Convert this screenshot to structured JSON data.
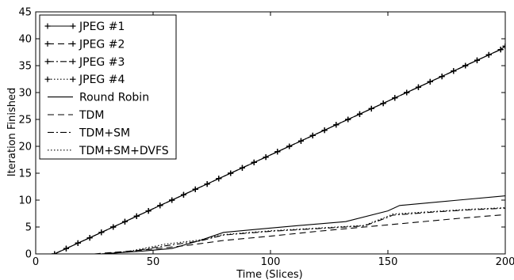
{
  "chart_data": {
    "type": "line",
    "title": "",
    "xlabel": "Time (Slices)",
    "ylabel": "Iteration Finished",
    "xlim": [
      0,
      200
    ],
    "ylim": [
      0,
      45
    ],
    "xticks": [
      0,
      50,
      100,
      150,
      200
    ],
    "yticks": [
      0,
      5,
      10,
      15,
      20,
      25,
      30,
      35,
      40,
      45
    ],
    "grid": false,
    "legend_position": "top-left",
    "series": [
      {
        "name": "JPEG #1",
        "style": "solid-plus",
        "x": [
          8,
          13,
          18,
          23,
          28,
          33,
          38,
          43,
          48,
          53,
          58,
          63,
          68,
          73,
          78,
          83,
          88,
          93,
          98,
          103,
          108,
          113,
          118,
          123,
          128,
          133,
          138,
          143,
          148,
          153,
          158,
          163,
          168,
          173,
          178,
          183,
          188,
          193,
          198,
          200
        ],
        "y": [
          0,
          1,
          2,
          3,
          4,
          5,
          6,
          7,
          8,
          9,
          10,
          11,
          12,
          13,
          14,
          15,
          16,
          17,
          18,
          19,
          20,
          21,
          22,
          23,
          24,
          25,
          26,
          27,
          28,
          29,
          30,
          31,
          32,
          33,
          34,
          35,
          36,
          37,
          38,
          38.6
        ]
      },
      {
        "name": "JPEG #2",
        "style": "dashed-plus",
        "x": [
          8,
          13,
          18,
          23,
          28,
          33,
          38,
          43,
          48,
          53,
          58,
          63,
          68,
          73,
          78,
          83,
          88,
          93,
          98,
          103,
          108,
          113,
          118,
          123,
          128,
          133,
          138,
          143,
          148,
          153,
          158,
          163,
          168,
          173,
          178,
          183,
          188,
          193,
          198,
          200
        ],
        "y": [
          0,
          1,
          2,
          3,
          4,
          5,
          6,
          7,
          8,
          9,
          10,
          11,
          12,
          13,
          14,
          15,
          16,
          17,
          18,
          19,
          20,
          21,
          22,
          23,
          24,
          25,
          26,
          27,
          28,
          29,
          30,
          31,
          32,
          33,
          34,
          35,
          36,
          37,
          38,
          38.6
        ]
      },
      {
        "name": "JPEG #3",
        "style": "dashdot-plus",
        "x": [
          8,
          13,
          18,
          23,
          28,
          33,
          38,
          43,
          48,
          53,
          58,
          63,
          68,
          73,
          78,
          83,
          88,
          93,
          98,
          103,
          108,
          113,
          118,
          123,
          128,
          133,
          138,
          143,
          148,
          153,
          158,
          163,
          168,
          173,
          178,
          183,
          188,
          193,
          198,
          200
        ],
        "y": [
          0,
          1,
          2,
          3,
          4,
          5,
          6,
          7,
          8,
          9,
          10,
          11,
          12,
          13,
          14,
          15,
          16,
          17,
          18,
          19,
          20,
          21,
          22,
          23,
          24,
          25,
          26,
          27,
          28,
          29,
          30,
          31,
          32,
          33,
          34,
          35,
          36,
          37,
          38,
          38.6
        ]
      },
      {
        "name": "JPEG #4",
        "style": "dotted-plus",
        "x": [
          8,
          13,
          18,
          23,
          28,
          33,
          38,
          43,
          48,
          53,
          58,
          63,
          68,
          73,
          78,
          83,
          88,
          93,
          98,
          103,
          108,
          113,
          118,
          123,
          128,
          133,
          138,
          143,
          148,
          153,
          158,
          163,
          168,
          173,
          178,
          183,
          188,
          193,
          198,
          200
        ],
        "y": [
          0,
          1,
          2,
          3,
          4,
          5,
          6,
          7,
          8,
          9,
          10,
          11,
          12,
          13,
          14,
          15,
          16,
          17,
          18,
          19,
          20,
          21,
          22,
          23,
          24,
          25,
          26,
          27,
          28,
          29,
          30,
          31,
          32,
          33,
          34,
          35,
          36,
          37,
          38,
          38.6
        ]
      },
      {
        "name": "Round Robin",
        "style": "solid",
        "x": [
          28,
          45,
          58,
          70,
          80,
          95,
          110,
          132,
          150,
          155,
          180,
          200
        ],
        "y": [
          0,
          0.5,
          1.0,
          2.5,
          4.0,
          4.6,
          5.2,
          6.0,
          8.0,
          9.0,
          10.0,
          10.8
        ]
      },
      {
        "name": "TDM",
        "style": "dashed",
        "x": [
          25,
          45,
          65,
          80,
          100,
          120,
          140,
          160,
          180,
          200
        ],
        "y": [
          0,
          0.7,
          1.6,
          2.5,
          3.3,
          4.2,
          5.0,
          5.8,
          6.6,
          7.3
        ]
      },
      {
        "name": "TDM+SM",
        "style": "dashdot",
        "x": [
          28,
          40,
          55,
          70,
          80,
          100,
          120,
          140,
          150,
          152,
          170,
          185,
          200
        ],
        "y": [
          0,
          0.4,
          1.5,
          2.4,
          3.5,
          4.2,
          4.7,
          5.2,
          6.8,
          7.2,
          7.8,
          8.2,
          8.5
        ]
      },
      {
        "name": "TDM+SM+DVFS",
        "style": "dotted",
        "x": [
          28,
          40,
          55,
          70,
          80,
          100,
          120,
          140,
          150,
          152,
          170,
          185,
          200
        ],
        "y": [
          0,
          0.5,
          1.8,
          2.6,
          3.6,
          4.3,
          4.8,
          5.3,
          7.0,
          7.4,
          7.9,
          8.3,
          8.6
        ]
      }
    ]
  }
}
